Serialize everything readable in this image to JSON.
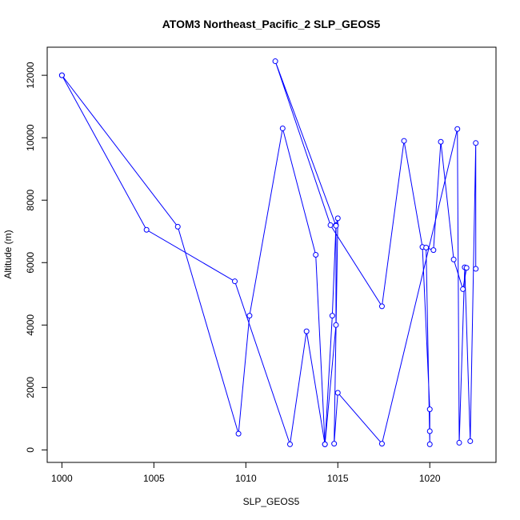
{
  "chart_data": {
    "type": "line",
    "title": "ATOM3 Northeast_Pacific_2 SLP_GEOS5",
    "xlabel": "SLP_GEOS5",
    "ylabel": "Altitude (m)",
    "xlim": [
      999.2,
      1023.6
    ],
    "ylim": [
      -400,
      12900
    ],
    "x_ticks": [
      1000,
      1005,
      1010,
      1015,
      1020
    ],
    "y_ticks": [
      0,
      2000,
      4000,
      6000,
      8000,
      10000,
      12000
    ],
    "grid": false,
    "series_color": "#0000ff",
    "series": [
      {
        "points": [
          [
            1000.0,
            12000
          ],
          [
            1006.3,
            7150
          ],
          [
            1009.6,
            520
          ],
          [
            1010.2,
            4300
          ],
          [
            1012.0,
            10300
          ],
          [
            1013.8,
            6250
          ],
          [
            1014.3,
            180
          ],
          [
            1014.7,
            4300
          ],
          [
            1014.9,
            7200
          ],
          [
            1015.0,
            7420
          ],
          [
            1014.8,
            200
          ],
          [
            1015.0,
            1830
          ],
          [
            1017.4,
            200
          ],
          [
            1021.5,
            10280
          ],
          [
            1021.6,
            230
          ],
          [
            1021.9,
            5850
          ],
          [
            1022.2,
            280
          ],
          [
            1022.5,
            9830
          ],
          [
            1022.5,
            5800
          ]
        ]
      },
      {
        "points": [
          [
            1000.0,
            12000
          ],
          [
            1004.6,
            7050
          ],
          [
            1009.4,
            5400
          ],
          [
            1012.4,
            180
          ],
          [
            1013.3,
            3800
          ],
          [
            1014.3,
            180
          ],
          [
            1014.9,
            4000
          ],
          [
            1014.9,
            7180
          ],
          [
            1011.6,
            12450
          ],
          [
            1014.6,
            7200
          ],
          [
            1017.4,
            4600
          ],
          [
            1018.6,
            9900
          ],
          [
            1019.6,
            6500
          ],
          [
            1020.0,
            1300
          ],
          [
            1020.0,
            600
          ],
          [
            1020.0,
            180
          ],
          [
            1019.8,
            6480
          ],
          [
            1020.2,
            6400
          ],
          [
            1020.6,
            9870
          ],
          [
            1021.3,
            6100
          ],
          [
            1021.8,
            5150
          ],
          [
            1022.0,
            5830
          ]
        ]
      }
    ]
  }
}
